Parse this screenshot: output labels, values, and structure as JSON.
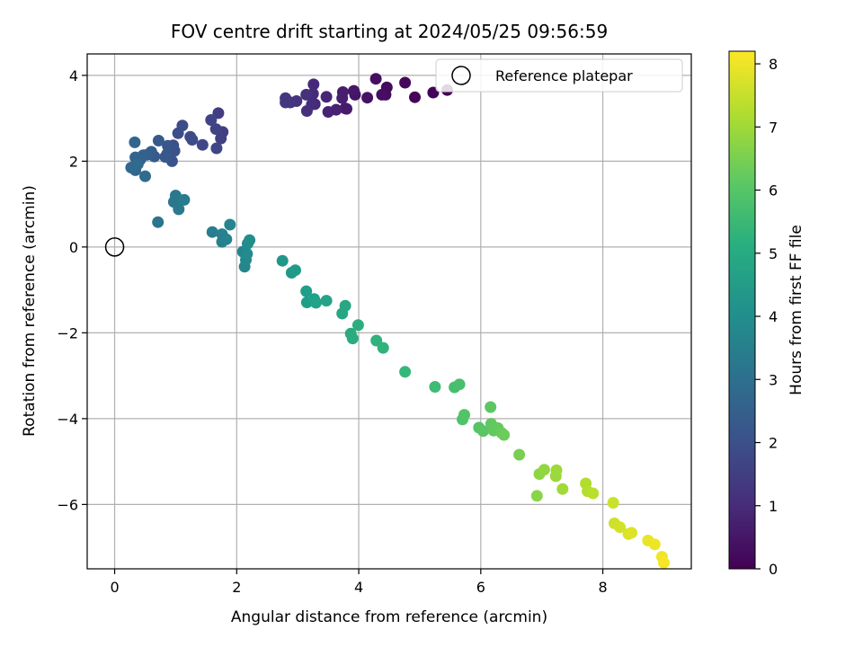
{
  "chart_data": {
    "type": "scatter",
    "title": "FOV centre drift starting at 2024/05/25 09:56:59",
    "xlabel": "Angular distance from reference (arcmin)",
    "ylabel": "Rotation from reference (arcmin)",
    "xlim": [
      -0.45,
      9.45
    ],
    "ylim": [
      -7.5,
      4.5
    ],
    "xticks": [
      0,
      2,
      4,
      6,
      8
    ],
    "yticks": [
      -6,
      -4,
      -2,
      0,
      2,
      4
    ],
    "xtick_labels": [
      "0",
      "2",
      "4",
      "6",
      "8"
    ],
    "ytick_labels": [
      "−6",
      "−4",
      "−2",
      "0",
      "2",
      "4"
    ],
    "grid": true,
    "legend": {
      "position": "top-right",
      "entries": [
        "Reference platepar"
      ]
    },
    "reference_point": {
      "x": 0,
      "y": 0
    },
    "colorbar": {
      "label": "Hours from first FF file",
      "colormap": "viridis",
      "range": [
        0,
        8.2
      ],
      "ticks": [
        0,
        1,
        2,
        3,
        4,
        5,
        6,
        7,
        8
      ],
      "tick_labels": [
        "0",
        "1",
        "2",
        "3",
        "4",
        "5",
        "6",
        "7",
        "8"
      ]
    },
    "points_columns": [
      "x",
      "y",
      "hours"
    ],
    "points": [
      [
        5.45,
        3.66,
        0.0
      ],
      [
        5.22,
        3.6,
        0.05
      ],
      [
        4.92,
        3.49,
        0.1
      ],
      [
        4.76,
        3.83,
        0.15
      ],
      [
        4.46,
        3.72,
        0.2
      ],
      [
        4.44,
        3.55,
        0.25
      ],
      [
        4.38,
        3.55,
        0.3
      ],
      [
        4.28,
        3.92,
        0.35
      ],
      [
        4.14,
        3.48,
        0.4
      ],
      [
        3.94,
        3.55,
        0.45
      ],
      [
        3.92,
        3.64,
        0.5
      ],
      [
        3.8,
        3.22,
        0.55
      ],
      [
        3.78,
        3.23,
        0.6
      ],
      [
        3.74,
        3.61,
        0.65
      ],
      [
        3.73,
        3.47,
        0.7
      ],
      [
        3.63,
        3.2,
        0.75
      ],
      [
        3.5,
        3.15,
        0.8
      ],
      [
        3.47,
        3.5,
        0.85
      ],
      [
        3.28,
        3.33,
        0.9
      ],
      [
        3.26,
        3.79,
        0.95
      ],
      [
        3.25,
        3.57,
        1.0
      ],
      [
        3.23,
        3.32,
        1.05
      ],
      [
        3.15,
        3.17,
        1.1
      ],
      [
        3.14,
        3.55,
        1.15
      ],
      [
        2.98,
        3.4,
        1.2
      ],
      [
        2.88,
        3.37,
        1.25
      ],
      [
        2.8,
        3.47,
        1.3
      ],
      [
        2.8,
        3.37,
        1.35
      ],
      [
        1.7,
        3.12,
        1.45
      ],
      [
        1.77,
        2.68,
        1.5
      ],
      [
        1.74,
        2.53,
        1.55
      ],
      [
        1.66,
        2.75,
        1.6
      ],
      [
        1.58,
        2.96,
        1.65
      ],
      [
        1.67,
        2.3,
        1.7
      ],
      [
        1.44,
        2.38,
        1.75
      ],
      [
        1.27,
        2.5,
        1.8
      ],
      [
        1.24,
        2.57,
        1.85
      ],
      [
        1.11,
        2.83,
        1.9
      ],
      [
        1.04,
        2.65,
        1.95
      ],
      [
        0.96,
        2.37,
        2.0
      ],
      [
        0.98,
        2.24,
        2.05
      ],
      [
        0.94,
        2.0,
        2.1
      ],
      [
        0.87,
        2.36,
        2.15
      ],
      [
        0.86,
        2.17,
        2.2
      ],
      [
        0.83,
        2.1,
        2.25
      ],
      [
        0.72,
        2.48,
        2.3
      ],
      [
        0.65,
        2.11,
        2.35
      ],
      [
        0.6,
        2.22,
        2.4
      ],
      [
        0.53,
        2.15,
        2.45
      ],
      [
        0.47,
        2.14,
        2.5
      ],
      [
        0.42,
        2.04,
        2.55
      ],
      [
        0.34,
        2.09,
        2.6
      ],
      [
        0.33,
        2.44,
        2.65
      ],
      [
        0.34,
        1.79,
        2.7
      ],
      [
        0.27,
        1.85,
        2.75
      ],
      [
        0.38,
        1.93,
        2.8
      ],
      [
        0.5,
        1.65,
        2.85
      ],
      [
        0.71,
        0.58,
        3.2
      ],
      [
        0.97,
        1.05,
        3.25
      ],
      [
        1.0,
        1.2,
        3.3
      ],
      [
        1.05,
        0.88,
        3.35
      ],
      [
        1.14,
        1.1,
        3.4
      ],
      [
        1.6,
        0.35,
        3.5
      ],
      [
        1.76,
        0.12,
        3.55
      ],
      [
        1.76,
        0.3,
        3.6
      ],
      [
        1.83,
        0.18,
        3.65
      ],
      [
        1.89,
        0.52,
        3.7
      ],
      [
        2.1,
        -0.11,
        3.75
      ],
      [
        2.13,
        -0.46,
        3.8
      ],
      [
        2.15,
        -0.3,
        3.85
      ],
      [
        2.17,
        -0.16,
        3.9
      ],
      [
        2.18,
        0.08,
        3.95
      ],
      [
        2.21,
        0.16,
        4.0
      ],
      [
        2.75,
        -0.32,
        4.3
      ],
      [
        2.9,
        -0.6,
        4.4
      ],
      [
        2.96,
        -0.54,
        4.45
      ],
      [
        3.14,
        -1.03,
        4.55
      ],
      [
        3.15,
        -1.29,
        4.6
      ],
      [
        3.27,
        -1.21,
        4.65
      ],
      [
        3.3,
        -1.3,
        4.7
      ],
      [
        3.47,
        -1.25,
        4.75
      ],
      [
        3.73,
        -1.55,
        4.85
      ],
      [
        3.78,
        -1.37,
        4.9
      ],
      [
        3.87,
        -2.02,
        5.0
      ],
      [
        3.9,
        -2.13,
        5.05
      ],
      [
        3.99,
        -1.82,
        5.1
      ],
      [
        4.29,
        -2.18,
        5.25
      ],
      [
        4.4,
        -2.35,
        5.3
      ],
      [
        4.76,
        -2.91,
        5.45
      ],
      [
        5.25,
        -3.26,
        5.65
      ],
      [
        5.57,
        -3.27,
        5.75
      ],
      [
        5.65,
        -3.2,
        5.8
      ],
      [
        5.7,
        -4.02,
        5.9
      ],
      [
        5.73,
        -3.91,
        5.95
      ],
      [
        5.97,
        -4.21,
        6.0
      ],
      [
        6.04,
        -4.29,
        6.05
      ],
      [
        6.16,
        -3.73,
        6.1
      ],
      [
        6.17,
        -4.12,
        6.15
      ],
      [
        6.21,
        -4.28,
        6.2
      ],
      [
        6.28,
        -4.22,
        6.25
      ],
      [
        6.34,
        -4.33,
        6.3
      ],
      [
        6.38,
        -4.38,
        6.35
      ],
      [
        6.63,
        -4.84,
        6.5
      ],
      [
        6.92,
        -5.8,
        6.75
      ],
      [
        6.96,
        -5.29,
        6.8
      ],
      [
        7.04,
        -5.19,
        6.85
      ],
      [
        7.23,
        -5.34,
        6.95
      ],
      [
        7.24,
        -5.2,
        7.0
      ],
      [
        7.34,
        -5.64,
        7.05
      ],
      [
        7.72,
        -5.51,
        7.25
      ],
      [
        7.75,
        -5.69,
        7.3
      ],
      [
        7.84,
        -5.74,
        7.35
      ],
      [
        8.17,
        -5.96,
        7.55
      ],
      [
        8.19,
        -6.44,
        7.6
      ],
      [
        8.28,
        -6.53,
        7.65
      ],
      [
        8.42,
        -6.69,
        7.75
      ],
      [
        8.47,
        -6.66,
        7.8
      ],
      [
        8.74,
        -6.84,
        7.95
      ],
      [
        8.85,
        -6.93,
        8.0
      ],
      [
        8.97,
        -7.22,
        8.05
      ],
      [
        9.0,
        -7.36,
        8.1
      ]
    ]
  }
}
